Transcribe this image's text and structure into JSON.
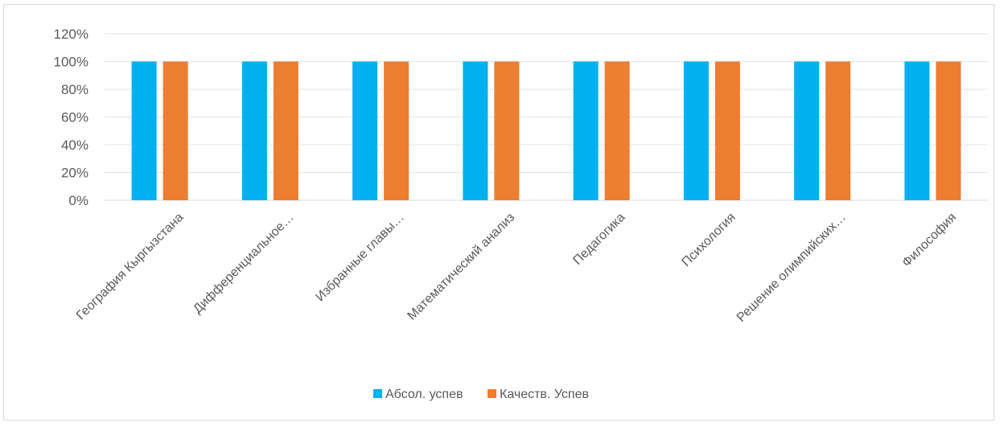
{
  "chart_data": {
    "type": "bar",
    "title": "",
    "xlabel": "",
    "ylabel": "",
    "categories": [
      "География Кыргызстана",
      "Дифференциальное…",
      "Избранные главы…",
      "Математический анализ",
      "Педагогика",
      "Психология",
      "Решение олимпийских…",
      "Философия"
    ],
    "series": [
      {
        "name": "Абсол. успев",
        "color": "#00b0f0",
        "values": [
          100,
          100,
          100,
          100,
          100,
          100,
          100,
          100
        ]
      },
      {
        "name": "Качеств. Успев",
        "color": "#ed7d31",
        "values": [
          100,
          100,
          100,
          100,
          100,
          100,
          100,
          100
        ]
      }
    ],
    "yticks": [
      "0%",
      "20%",
      "40%",
      "60%",
      "80%",
      "100%",
      "120%"
    ],
    "ylim": [
      0,
      120
    ],
    "grid": true,
    "legend_position": "bottom"
  }
}
